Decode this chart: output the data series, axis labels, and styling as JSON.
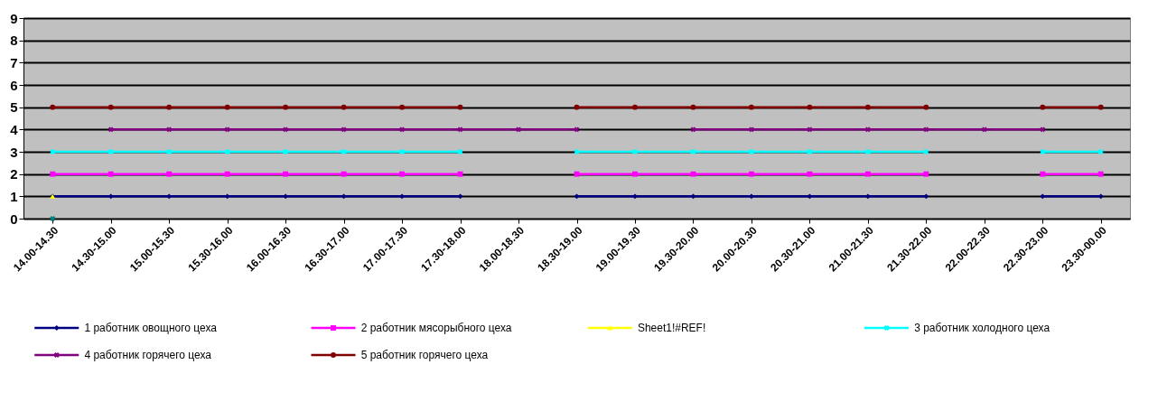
{
  "chart_data": {
    "type": "line",
    "categories": [
      "14.00-14.30",
      "14.30-15.00",
      "15.00-15.30",
      "15.30-16.00",
      "16.00-16.30",
      "16.30-17.00",
      "17.00-17.30",
      "17.30-18.00",
      "18.00-18.30",
      "18.30-19.00",
      "19.00-19.30",
      "19.30-20.00",
      "20.00-20.30",
      "20.30-21.00",
      "21.00-21.30",
      "21.30-22.00",
      "22.00-22.30",
      "22.30-23.00",
      "23.30-00.00"
    ],
    "series": [
      {
        "name": "1 работник овощного цеха",
        "color": "#000080",
        "marker": "diamond",
        "values": [
          1,
          1,
          1,
          1,
          1,
          1,
          1,
          1,
          null,
          1,
          1,
          1,
          1,
          1,
          1,
          1,
          null,
          1,
          1
        ]
      },
      {
        "name": "2 работник мясорыбного цеха",
        "color": "#ff00ff",
        "marker": "square",
        "values": [
          2,
          2,
          2,
          2,
          2,
          2,
          2,
          2,
          null,
          2,
          2,
          2,
          2,
          2,
          2,
          2,
          null,
          2,
          2
        ]
      },
      {
        "name": "Sheet1!#REF!",
        "color": "#ffff00",
        "marker": "triangle",
        "values": [
          1,
          null,
          null,
          null,
          null,
          null,
          null,
          null,
          null,
          null,
          null,
          null,
          null,
          null,
          null,
          null,
          null,
          null,
          null
        ]
      },
      {
        "name": "3 работник холодного цеха",
        "color": "#00ffff",
        "marker": "cross",
        "values": [
          3,
          3,
          3,
          3,
          3,
          3,
          3,
          3,
          null,
          3,
          3,
          3,
          3,
          3,
          3,
          3,
          null,
          3,
          3
        ]
      },
      {
        "name": "4 работник горячего цеха",
        "color": "#800080",
        "marker": "cross",
        "values": [
          null,
          4,
          4,
          4,
          4,
          4,
          4,
          4,
          4,
          4,
          null,
          4,
          4,
          4,
          4,
          4,
          4,
          4,
          null
        ]
      },
      {
        "name": "5 работник горячего цеха",
        "color": "#800000",
        "marker": "circle",
        "values": [
          5,
          5,
          5,
          5,
          5,
          5,
          5,
          5,
          null,
          5,
          5,
          5,
          5,
          5,
          5,
          5,
          null,
          5,
          5
        ]
      },
      {
        "color": "#008080",
        "marker": "cross",
        "values": [
          0,
          null,
          null,
          null,
          null,
          null,
          null,
          null,
          null,
          null,
          null,
          null,
          null,
          null,
          null,
          null,
          null,
          null,
          null
        ]
      }
    ],
    "ylim": [
      0,
      9
    ],
    "yticks": [
      0,
      1,
      2,
      3,
      4,
      5,
      6,
      7,
      8,
      9
    ],
    "grid": "y",
    "legend": "bottom"
  }
}
